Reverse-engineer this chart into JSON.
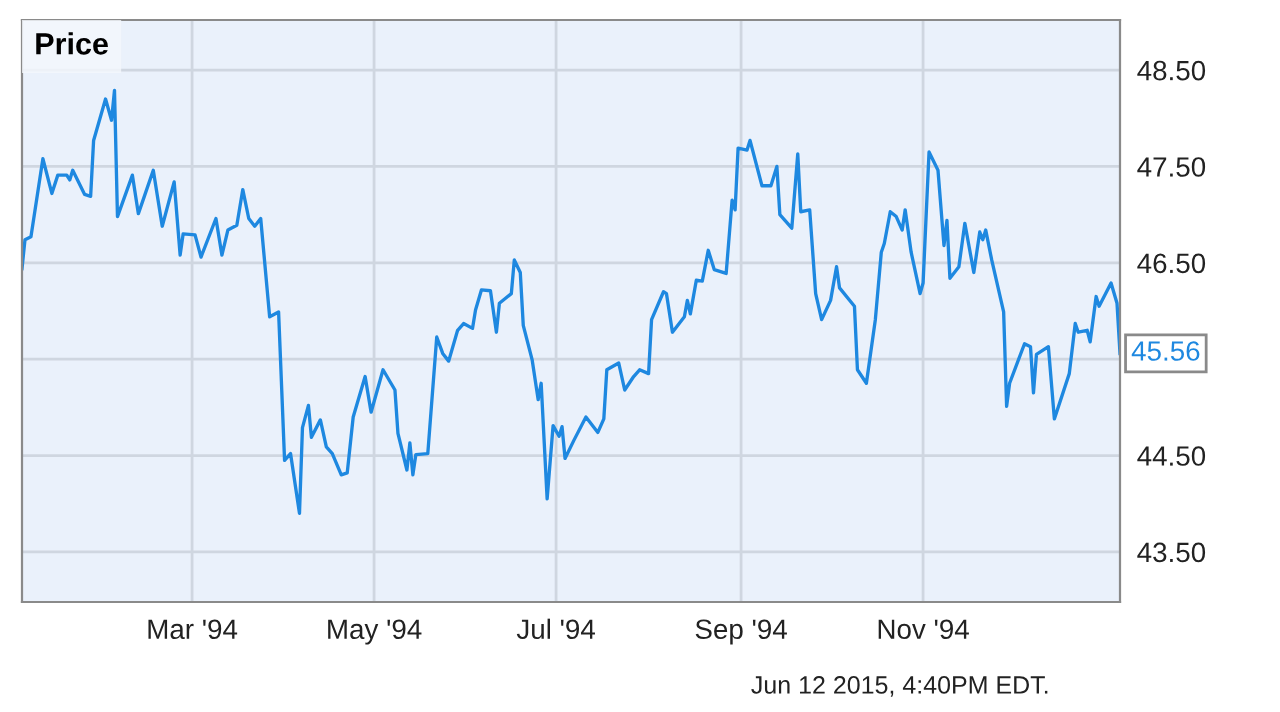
{
  "chart_data": {
    "type": "line",
    "x": [
      "1994-01-03",
      "1994-01-04",
      "1994-01-06",
      "1994-01-10",
      "1994-01-13",
      "1994-01-15",
      "1994-01-18",
      "1994-01-19",
      "1994-01-20",
      "1994-01-24",
      "1994-01-26",
      "1994-01-27",
      "1994-01-31",
      "1994-02-02",
      "1994-02-03",
      "1994-02-04",
      "1994-02-09",
      "1994-02-11",
      "1994-02-13",
      "1994-02-16",
      "1994-02-19",
      "1994-02-23",
      "1994-02-25",
      "1994-02-26",
      "1994-03-02",
      "1994-03-04",
      "1994-03-09",
      "1994-03-11",
      "1994-03-13",
      "1994-03-16",
      "1994-03-18",
      "1994-03-20",
      "1994-03-22",
      "1994-03-24",
      "1994-03-27",
      "1994-03-30",
      "1994-04-01",
      "1994-04-03",
      "1994-04-06",
      "1994-04-07",
      "1994-04-09",
      "1994-04-10",
      "1994-04-13",
      "1994-04-15",
      "1994-04-17",
      "1994-04-20",
      "1994-04-22",
      "1994-04-24",
      "1994-04-28",
      "1994-04-30",
      "1994-05-04",
      "1994-05-08",
      "1994-05-09",
      "1994-05-12",
      "1994-05-13",
      "1994-05-14",
      "1994-05-15",
      "1994-05-19",
      "1994-05-22",
      "1994-05-24",
      "1994-05-26",
      "1994-05-29",
      "1994-05-31",
      "1994-06-03",
      "1994-06-04",
      "1994-06-06",
      "1994-06-09",
      "1994-06-11",
      "1994-06-12",
      "1994-06-16",
      "1994-06-17",
      "1994-06-19",
      "1994-06-20",
      "1994-06-23",
      "1994-06-25",
      "1994-06-26",
      "1994-06-28",
      "1994-06-30",
      "1994-07-02",
      "1994-07-03",
      "1994-07-04",
      "1994-07-07",
      "1994-07-11",
      "1994-07-15",
      "1994-07-17",
      "1994-07-18",
      "1994-07-22",
      "1994-07-24",
      "1994-07-27",
      "1994-07-29",
      "1994-08-01",
      "1994-08-02",
      "1994-08-06",
      "1994-08-07",
      "1994-08-09",
      "1994-08-13",
      "1994-08-14",
      "1994-08-15",
      "1994-08-17",
      "1994-08-19",
      "1994-08-21",
      "1994-08-23",
      "1994-08-27",
      "1994-08-29",
      "1994-08-30",
      "1994-08-31",
      "1994-09-03",
      "1994-09-04",
      "1994-09-08",
      "1994-09-11",
      "1994-09-13",
      "1994-09-14",
      "1994-09-18",
      "1994-09-20",
      "1994-09-21",
      "1994-09-24",
      "1994-09-26",
      "1994-09-28",
      "1994-10-01",
      "1994-10-03",
      "1994-10-04",
      "1994-10-09",
      "1994-10-10",
      "1994-10-13",
      "1994-10-16",
      "1994-10-18",
      "1994-10-19",
      "1994-10-21",
      "1994-10-23",
      "1994-10-25",
      "1994-10-26",
      "1994-10-28",
      "1994-10-31",
      "1994-11-01",
      "1994-11-03",
      "1994-11-06",
      "1994-11-08",
      "1994-11-09",
      "1994-11-10",
      "1994-11-13",
      "1994-11-15",
      "1994-11-18",
      "1994-11-20",
      "1994-11-21",
      "1994-11-22",
      "1994-11-24",
      "1994-11-28",
      "1994-11-29",
      "1994-11-30",
      "1994-12-05",
      "1994-12-07",
      "1994-12-08",
      "1994-12-09",
      "1994-12-13",
      "1994-12-15",
      "1994-12-20",
      "1994-12-22",
      "1994-12-23",
      "1994-12-26",
      "1994-12-27",
      "1994-12-29",
      "1994-12-30",
      "1995-01-03",
      "1995-01-05",
      "1995-01-06"
    ],
    "series": [
      {
        "name": "Price",
        "color": "#1e88e0",
        "values": [
          46.44,
          46.74,
          46.77,
          47.58,
          47.22,
          47.41,
          47.41,
          47.36,
          47.46,
          47.21,
          47.19,
          47.77,
          48.2,
          47.98,
          48.29,
          46.98,
          47.41,
          47.01,
          47.19,
          47.46,
          46.88,
          47.34,
          46.58,
          46.8,
          46.79,
          46.56,
          46.96,
          46.58,
          46.84,
          46.89,
          47.26,
          46.96,
          46.88,
          46.96,
          45.94,
          45.99,
          44.45,
          44.52,
          43.9,
          44.79,
          45.02,
          44.69,
          44.87,
          44.59,
          44.52,
          44.3,
          44.32,
          44.9,
          45.32,
          44.95,
          45.39,
          45.18,
          44.73,
          44.35,
          44.63,
          44.3,
          44.51,
          44.52,
          45.73,
          45.56,
          45.48,
          45.8,
          45.87,
          45.82,
          46.01,
          46.22,
          46.21,
          45.78,
          46.08,
          46.18,
          46.53,
          46.4,
          45.85,
          45.49,
          45.08,
          45.25,
          44.05,
          44.81,
          44.7,
          44.8,
          44.47,
          44.66,
          44.9,
          44.74,
          44.88,
          45.39,
          45.46,
          45.18,
          45.32,
          45.39,
          45.35,
          45.91,
          46.2,
          46.18,
          45.78,
          45.94,
          46.11,
          45.97,
          46.32,
          46.31,
          46.63,
          46.43,
          46.39,
          47.15,
          47.05,
          47.69,
          47.67,
          47.77,
          47.3,
          47.3,
          47.5,
          47.0,
          46.86,
          47.63,
          47.03,
          47.05,
          46.18,
          45.91,
          46.11,
          46.46,
          46.24,
          46.05,
          45.39,
          45.25,
          45.91,
          46.61,
          46.7,
          47.03,
          46.98,
          46.84,
          47.05,
          46.61,
          46.18,
          46.29,
          47.65,
          47.46,
          46.68,
          46.94,
          46.34,
          46.46,
          46.91,
          46.4,
          46.82,
          46.74,
          46.84,
          46.53,
          45.99,
          45.01,
          45.25,
          45.66,
          45.63,
          45.15,
          45.55,
          45.63,
          44.88,
          45.35,
          45.87,
          45.78,
          45.8,
          45.68,
          46.15,
          46.05,
          46.29,
          46.08,
          45.56
        ]
      }
    ],
    "xlim": [
      "1994-01-03",
      "1995-01-06"
    ],
    "xticks": [
      {
        "value": "1994-03-01",
        "label": "Mar '94"
      },
      {
        "value": "1994-05-01",
        "label": "May '94"
      },
      {
        "value": "1994-07-01",
        "label": "Jul '94"
      },
      {
        "value": "1994-09-01",
        "label": "Sep '94"
      },
      {
        "value": "1994-11-01",
        "label": "Nov '94"
      }
    ],
    "ylim": [
      42.98,
      49.02
    ],
    "yticks": [
      {
        "value": 43.5,
        "label": "43.50"
      },
      {
        "value": 44.5,
        "label": "44.50"
      },
      {
        "value": 45.5,
        "label": null
      },
      {
        "value": 46.5,
        "label": "46.50"
      },
      {
        "value": 47.5,
        "label": "47.50"
      },
      {
        "value": 48.5,
        "label": "48.50"
      }
    ],
    "grid": true,
    "legend": "top left",
    "marker": "none",
    "line_style": "solid",
    "annotations": [
      {
        "text": "45.56",
        "x": "1995-01-06",
        "y": 45.56
      },
      "Jun 12 2015, 4:40PM EDT."
    ]
  }
}
